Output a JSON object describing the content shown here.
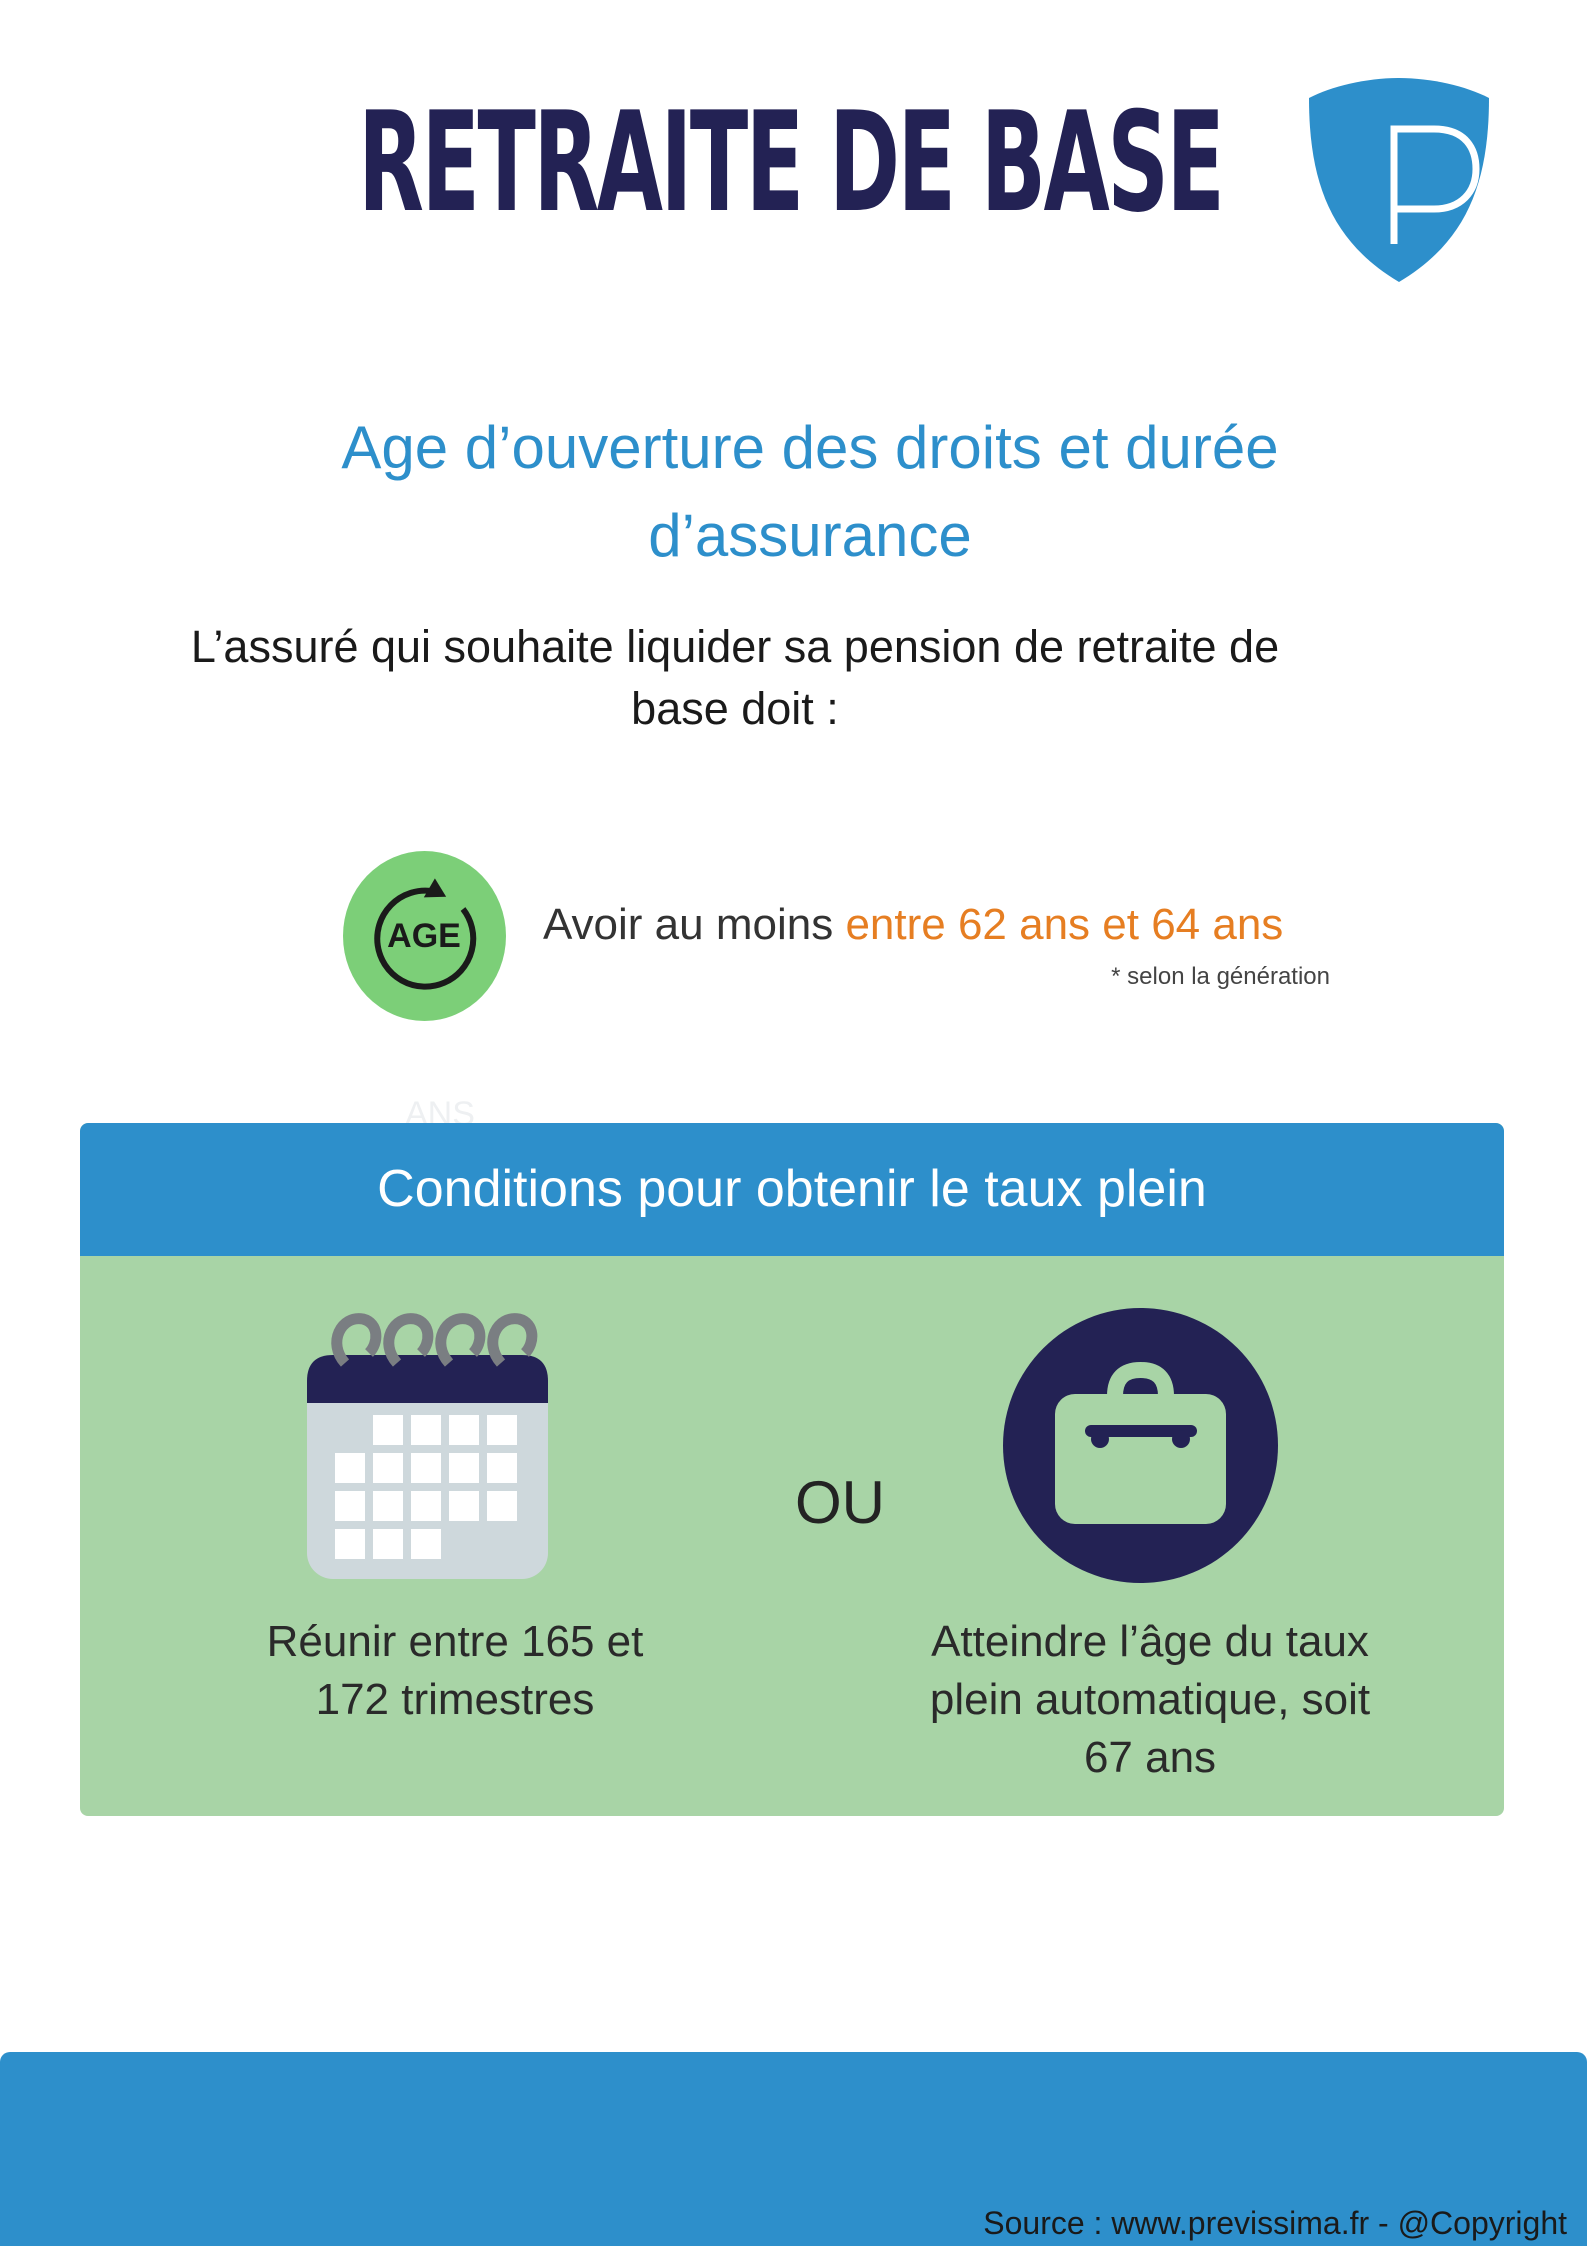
{
  "header": {
    "title": "RETRAITE DE BASE",
    "logo_letter": "P",
    "logo_icon": "shield-p-logo"
  },
  "section": {
    "subtitle_line1": "Age d’ouverture des droits et durée",
    "subtitle_line2": "d’assurance",
    "intro_line1": "L’assuré qui souhaite liquider sa pension de retraite de",
    "intro_line2": "base doit :"
  },
  "age_condition": {
    "icon_label": "AGE",
    "text_prefix": "Avoir au moins ",
    "text_highlight": "entre 62 ans et 64 ans",
    "note": "* selon la génération",
    "ghost_text": "ANS"
  },
  "conditions": {
    "title": "Conditions pour obtenir le taux plein",
    "separator": "OU",
    "left_line1": "Réunir entre 165 et",
    "left_line2": "172 trimestres",
    "right_line1": "Atteindre l’âge du taux",
    "right_line2": "plein automatique, soit",
    "right_line3": "67 ans"
  },
  "footer": {
    "source": "Source : www.previssima.fr - @Copyright"
  },
  "colors": {
    "navy": "#232254",
    "blue": "#2d8fcb",
    "green_light": "#a8d4a6",
    "green_circle": "#7ccf78",
    "orange": "#e67e22"
  }
}
